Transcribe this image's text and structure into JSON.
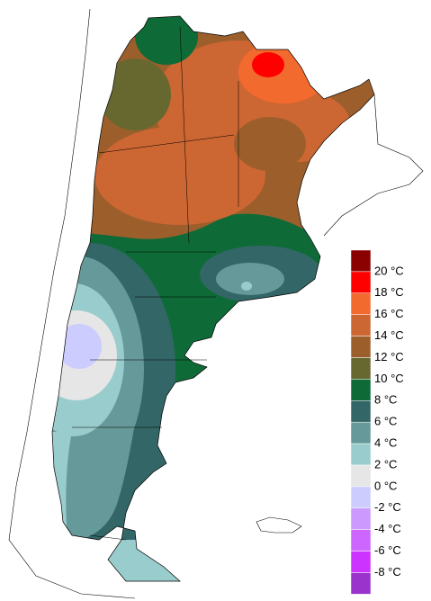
{
  "legend": {
    "labels": [
      "20 °C",
      "18 °C",
      "16 °C",
      "14 °C",
      "12 °C",
      "10 °C",
      "8 °C",
      "6 °C",
      "4 °C",
      "2 °C",
      "0 °C",
      "-2 °C",
      "-4 °C",
      "-6 °C",
      "-8 °C"
    ],
    "colors": [
      "#8b0000",
      "#ff0000",
      "#f26a2e",
      "#cc6633",
      "#9c5f2c",
      "#676830",
      "#0e6b37",
      "#336666",
      "#669999",
      "#99cccc",
      "#e6e6e6",
      "#ccccff",
      "#cc99ff",
      "#cc66ff",
      "#cc33ff",
      "#9933cc"
    ]
  }
}
